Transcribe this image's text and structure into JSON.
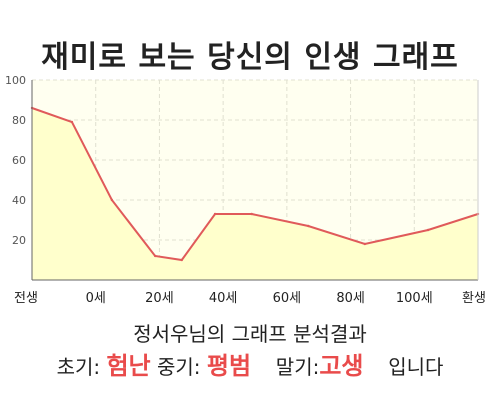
{
  "header": {
    "title": "재미로 보는 당신의 인생 그래프"
  },
  "summary": {
    "name_line": "정서우님의 그래프 분석결과",
    "early_label": "초기:",
    "early_value": "험난",
    "middle_label": "중기:",
    "middle_value": "평범",
    "late_label": "말기:",
    "late_value": "고생",
    "suffix": "입니다"
  },
  "colors": {
    "line": "#e05a5a",
    "fill": "#ffffcc",
    "plot_bg": "#fffff0",
    "grid": "#e0e0d0",
    "accent_text": "#e94b4b"
  },
  "chart_data": {
    "type": "area",
    "title": "재미로 보는 당신의 인생 그래프",
    "xlabel": "",
    "ylabel": "",
    "x_tick_labels": [
      "전생",
      "0세",
      "20세",
      "40세",
      "60세",
      "80세",
      "100세",
      "환생"
    ],
    "y_ticks": [
      20,
      40,
      60,
      80,
      100
    ],
    "ylim": [
      0,
      100
    ],
    "grid": true,
    "legend": "none",
    "series": [
      {
        "values_description": "life curve",
        "x": [
          -12,
          0,
          12,
          25,
          33,
          43,
          54,
          71,
          88,
          107,
          122
        ],
        "y": [
          86,
          79,
          40,
          12,
          10,
          33,
          33,
          27,
          18,
          25,
          33
        ]
      }
    ]
  }
}
